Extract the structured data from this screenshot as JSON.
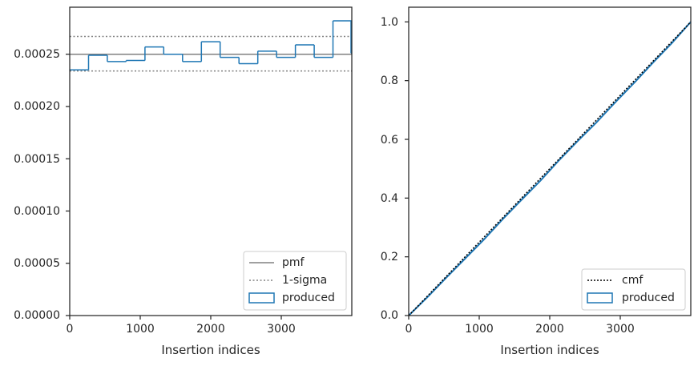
{
  "chart_data": [
    {
      "type": "histogram",
      "xlabel": "Insertion indices",
      "ylabel": "",
      "xlim": [
        0,
        4000
      ],
      "ylim": [
        0,
        0.000295
      ],
      "xticks": [
        0,
        1000,
        2000,
        3000
      ],
      "xtick_labels": [
        "0",
        "1000",
        "2000",
        "3000"
      ],
      "yticks": [
        0,
        5e-05,
        0.0001,
        0.00015,
        0.0002,
        0.00025
      ],
      "ytick_labels": [
        "0.00000",
        "0.00005",
        "0.00010",
        "0.00015",
        "0.00020",
        "0.00025"
      ],
      "bin_edges": [
        0,
        267,
        533,
        800,
        1067,
        1333,
        1600,
        1867,
        2133,
        2400,
        2667,
        2933,
        3200,
        3467,
        3733,
        4000
      ],
      "produced": [
        0.000235,
        0.000249,
        0.000243,
        0.000244,
        0.000257,
        0.00025,
        0.000243,
        0.000262,
        0.000247,
        0.000241,
        0.000253,
        0.000247,
        0.000259,
        0.000247,
        0.000282
      ],
      "produced_tail": 0.000251,
      "pmf": 0.00025,
      "sigma_upper": 0.000267,
      "sigma_lower": 0.000234,
      "legend": {
        "position": "lower right",
        "entries": [
          "pmf",
          "1-sigma",
          "produced"
        ]
      },
      "colors": {
        "pmf": "#808080",
        "sigma": "#808080",
        "produced": "#1f77b4"
      }
    },
    {
      "type": "line",
      "xlabel": "Insertion indices",
      "ylabel": "",
      "xlim": [
        0,
        4000
      ],
      "ylim": [
        0,
        1.05
      ],
      "xticks": [
        0,
        1000,
        2000,
        3000
      ],
      "xtick_labels": [
        "0",
        "1000",
        "2000",
        "3000"
      ],
      "yticks": [
        0,
        0.2,
        0.4,
        0.6,
        0.8,
        1.0
      ],
      "ytick_labels": [
        "0.0",
        "0.2",
        "0.4",
        "0.6",
        "0.8",
        "1.0"
      ],
      "cmf": {
        "x": [
          0,
          4000
        ],
        "y": [
          0,
          1.0
        ]
      },
      "produced": {
        "x": [
          0,
          267,
          533,
          800,
          1067,
          1333,
          1600,
          1867,
          2133,
          2400,
          2667,
          2933,
          3200,
          3467,
          3733,
          4000
        ],
        "y": [
          0,
          0.063,
          0.129,
          0.194,
          0.259,
          0.328,
          0.394,
          0.459,
          0.529,
          0.595,
          0.659,
          0.727,
          0.793,
          0.862,
          0.928,
          1.0
        ]
      },
      "legend": {
        "position": "lower right",
        "entries": [
          "cmf",
          "produced"
        ]
      },
      "colors": {
        "cmf": "#000000",
        "produced": "#1f77b4"
      }
    }
  ]
}
